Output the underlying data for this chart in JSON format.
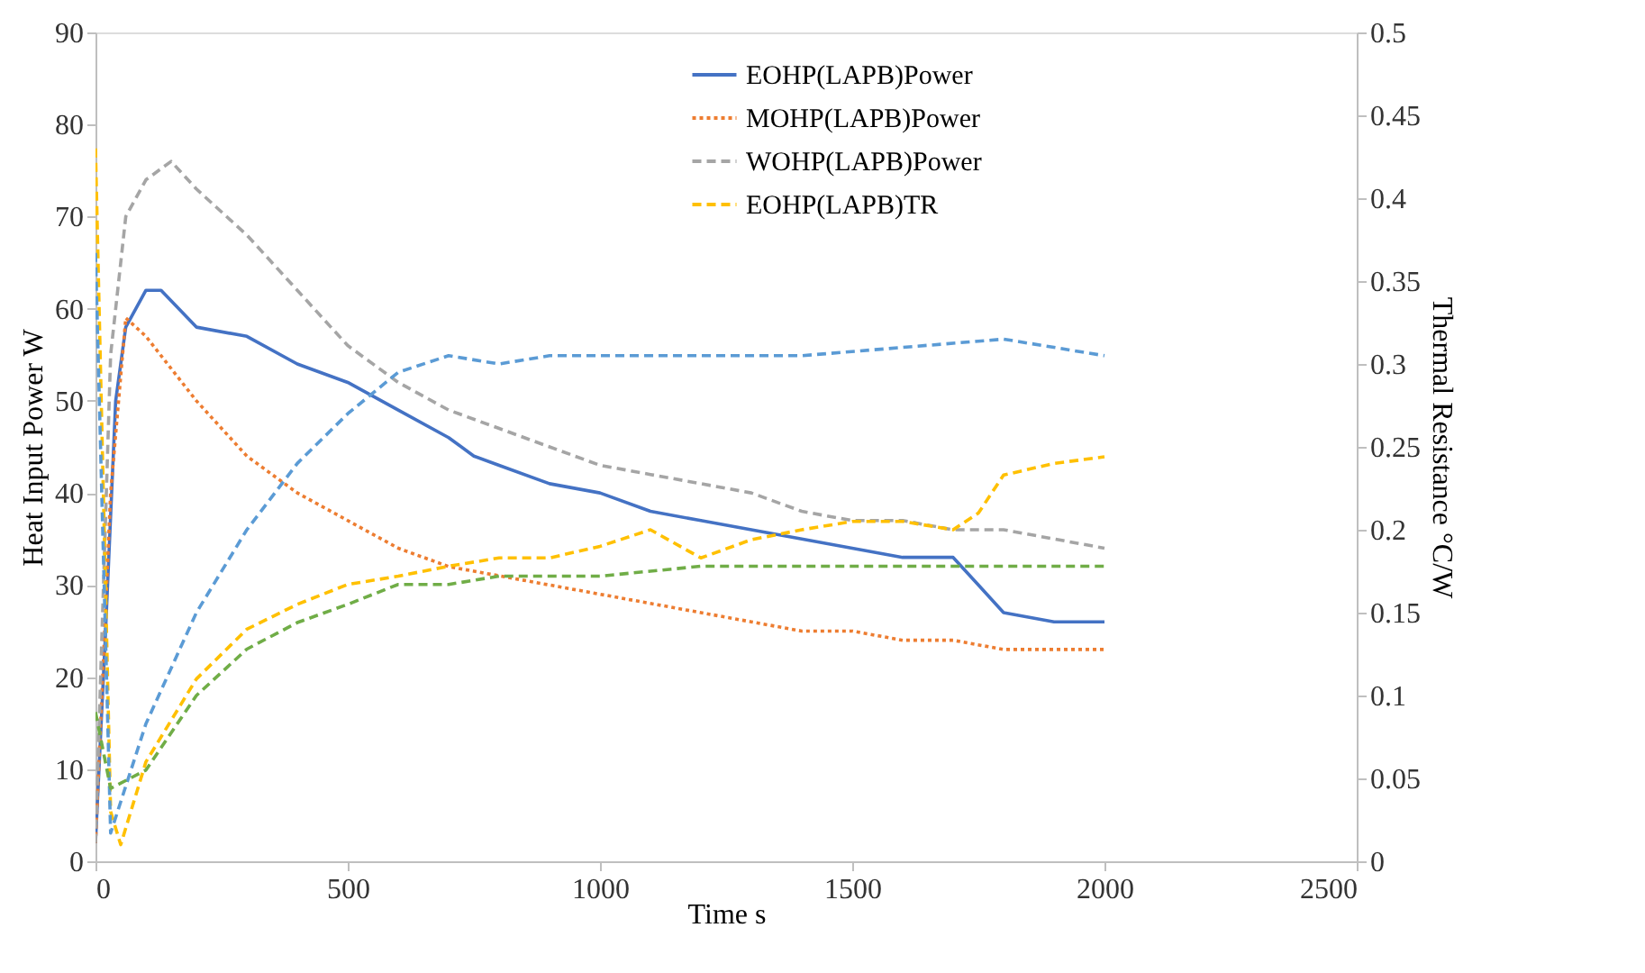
{
  "chart_data": {
    "type": "line",
    "xlabel": "Time s",
    "ylabel": "Heat Input Power W",
    "y2label": "Thermal Resistance °C/W",
    "xlim": [
      0,
      2500
    ],
    "xticks": [
      0,
      500,
      1000,
      1500,
      2000,
      2500
    ],
    "ylim": [
      0,
      90
    ],
    "yticks": [
      0,
      10,
      20,
      30,
      40,
      50,
      60,
      70,
      80,
      90
    ],
    "y2lim": [
      0,
      0.5
    ],
    "y2ticks": [
      0,
      0.05,
      0.1,
      0.15,
      0.2,
      0.25,
      0.3,
      0.35,
      0.4,
      0.45,
      0.5
    ],
    "grid": false,
    "legend": "top",
    "marker": "none",
    "series": [
      {
        "name": "EOHP(LAPB)Power",
        "color": "#4472c4",
        "line_style": "solid",
        "x": [
          0,
          20,
          40,
          60,
          100,
          130,
          200,
          300,
          400,
          500,
          600,
          700,
          750,
          800,
          900,
          1000,
          1100,
          1200,
          1300,
          1400,
          1500,
          1600,
          1700,
          1750,
          1800,
          1900,
          2000
        ],
        "values": [
          2,
          25,
          50,
          58,
          62,
          62,
          58,
          57,
          54,
          52,
          49,
          46,
          44,
          43,
          41,
          40,
          38,
          37,
          36,
          35,
          34,
          33,
          33,
          30,
          27,
          26,
          26
        ]
      },
      {
        "name": "MOHP(LAPB)Power",
        "color": "#ed7d31",
        "line_style": "dotted",
        "x": [
          0,
          30,
          60,
          100,
          200,
          300,
          400,
          500,
          600,
          700,
          800,
          900,
          1000,
          1100,
          1200,
          1300,
          1400,
          1500,
          1600,
          1700,
          1800,
          1900,
          2000
        ],
        "values": [
          2,
          40,
          59,
          57,
          50,
          44,
          40,
          37,
          34,
          32,
          31,
          30,
          29,
          28,
          27,
          26,
          25,
          25,
          24,
          24,
          23,
          23,
          23
        ]
      },
      {
        "name": "WOHP(LAPB)Power",
        "color": "#a5a5a5",
        "line_style": "dashed",
        "x": [
          0,
          30,
          60,
          100,
          150,
          200,
          300,
          400,
          500,
          600,
          700,
          800,
          900,
          1000,
          1100,
          1200,
          1300,
          1400,
          1500,
          1600,
          1700,
          1800,
          1900,
          2000
        ],
        "values": [
          2,
          55,
          70,
          74,
          76,
          73,
          68,
          62,
          56,
          52,
          49,
          47,
          45,
          43,
          42,
          41,
          40,
          38,
          37,
          37,
          36,
          36,
          35,
          34
        ]
      },
      {
        "name": "EOHP(LAPB)TR",
        "color": "#ffc000",
        "line_style": "dashed",
        "axis": "y2",
        "x": [
          0,
          30,
          50,
          100,
          200,
          300,
          400,
          500,
          600,
          700,
          800,
          900,
          1000,
          1100,
          1200,
          1300,
          1400,
          1500,
          1600,
          1700,
          1750,
          1800,
          1900,
          2000
        ],
        "values": [
          0.43,
          0.03,
          0.01,
          0.06,
          0.11,
          0.14,
          0.155,
          0.167,
          0.172,
          0.178,
          0.183,
          0.183,
          0.19,
          0.2,
          0.183,
          0.194,
          0.2,
          0.205,
          0.205,
          0.2,
          0.21,
          0.233,
          0.24,
          0.244
        ]
      },
      {
        "color": "#5b9bd5",
        "line_style": "dashed",
        "axis": "y2",
        "x": [
          0,
          30,
          100,
          200,
          300,
          400,
          500,
          600,
          700,
          800,
          900,
          1000,
          1200,
          1400,
          1600,
          1800,
          2000
        ],
        "values": [
          0.367,
          0.017,
          0.083,
          0.15,
          0.2,
          0.24,
          0.27,
          0.295,
          0.305,
          0.3,
          0.305,
          0.305,
          0.305,
          0.305,
          0.31,
          0.315,
          0.305
        ]
      },
      {
        "color": "#70ad47",
        "line_style": "dashed",
        "axis": "y2",
        "x": [
          0,
          30,
          100,
          200,
          300,
          400,
          500,
          600,
          700,
          800,
          1000,
          1200,
          1400,
          1600,
          1800,
          2000
        ],
        "values": [
          0.09,
          0.044,
          0.055,
          0.1,
          0.128,
          0.144,
          0.155,
          0.167,
          0.167,
          0.172,
          0.172,
          0.178,
          0.178,
          0.178,
          0.178,
          0.178
        ]
      }
    ]
  }
}
